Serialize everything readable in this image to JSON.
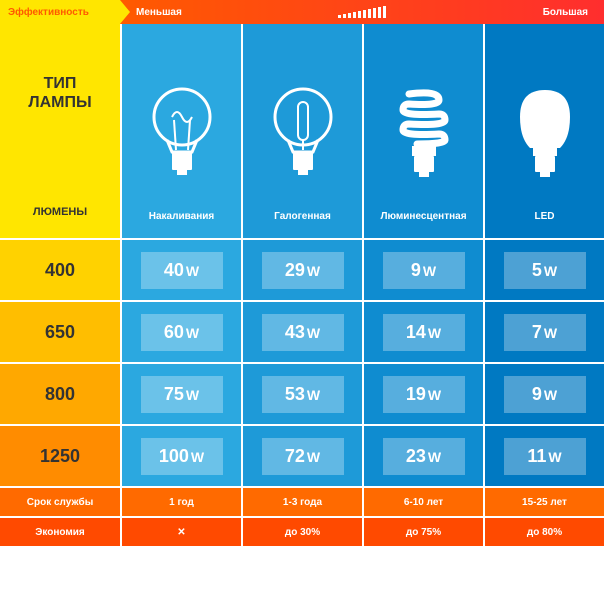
{
  "header": {
    "efficiency_label": "Эффективность",
    "less_label": "Меньшая",
    "more_label": "Большая",
    "gradient_colors": [
      "#ff5a00",
      "#ff2e2e"
    ]
  },
  "label_column": {
    "type_label": "ТИП\nЛАМПЫ",
    "lumens_label": "ЛЮМЕНЫ",
    "bg": "#ffe600",
    "text_color": "#333333"
  },
  "bulb_columns": [
    {
      "name": "Накаливания",
      "icon": "incandescent",
      "bg": "#2ba8e0"
    },
    {
      "name": "Галогенная",
      "icon": "halogen",
      "bg": "#1e9ad8"
    },
    {
      "name": "Люминесцентная",
      "icon": "cfl",
      "bg": "#0f8cd0"
    },
    {
      "name": "LED",
      "icon": "led",
      "bg": "#0079c2"
    }
  ],
  "lumen_rows": [
    {
      "lumens": "400",
      "lum_bg": "#ffd200",
      "watts": [
        "40",
        "29",
        "9",
        "5"
      ]
    },
    {
      "lumens": "650",
      "lum_bg": "#ffbe00",
      "watts": [
        "60",
        "43",
        "14",
        "7"
      ]
    },
    {
      "lumens": "800",
      "lum_bg": "#ffa800",
      "watts": [
        "75",
        "53",
        "19",
        "9"
      ]
    },
    {
      "lumens": "1250",
      "lum_bg": "#ff8c00",
      "watts": [
        "100",
        "72",
        "23",
        "11"
      ]
    }
  ],
  "watt_unit": "W",
  "footer_rows": [
    {
      "label": "Срок службы",
      "bg": "#ff6a00",
      "values": [
        "1 год",
        "1-3 года",
        "6-10 лет",
        "15-25 лет"
      ]
    },
    {
      "label": "Экономия",
      "bg": "#ff4a00",
      "values": [
        "✕",
        "до 30%",
        "до 75%",
        "до 80%"
      ]
    }
  ],
  "icon_color": "#ffffff"
}
